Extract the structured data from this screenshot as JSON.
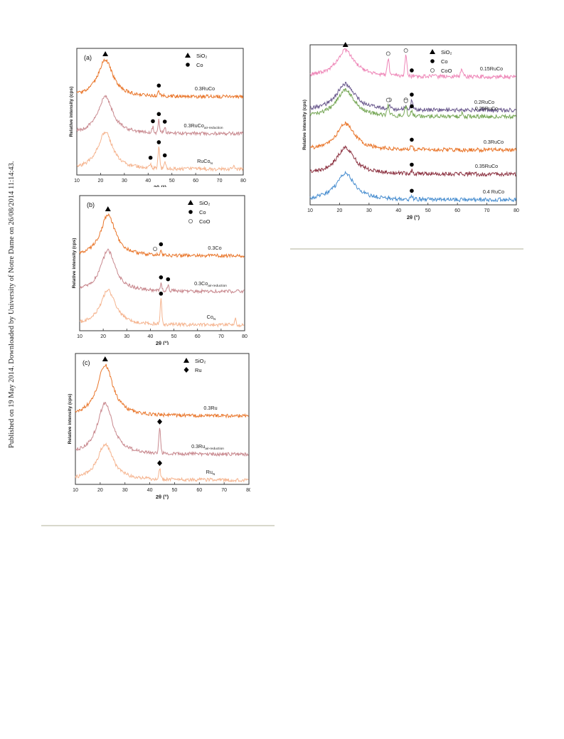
{
  "side_note": "Published on 19 May 2014. Downloaded by University of Notre Dame on 26/08/2014 11:14:43.",
  "chart_data": [
    {
      "type": "line",
      "panel_label": "(a)",
      "ylabel": "Relative intensity (cps)",
      "xlabel": "2θ (°)",
      "xlim": [
        10,
        80
      ],
      "x_ticks": [
        10,
        20,
        30,
        40,
        50,
        60,
        70,
        80
      ],
      "legend": [
        {
          "symbol": "triangle",
          "label": "SiO₂"
        },
        {
          "symbol": "circle",
          "label": "Co"
        }
      ],
      "series": [
        {
          "name": "0.3RuCo",
          "label_main": "0.3RuCo",
          "label_sub": "",
          "color": "#e9762b",
          "humps": [
            {
              "x": 22,
              "h": 1.0,
              "w": 3.8
            }
          ],
          "peaks": [
            {
              "x": 44.5,
              "h": 0.12
            }
          ],
          "markers": [
            {
              "type": "triangle",
              "x": 22
            },
            {
              "type": "circle",
              "x": 44.5
            }
          ]
        },
        {
          "name": "0.3RuCo air-reduction",
          "label_main": "0.3RuCo",
          "label_sub": "air-reduction",
          "color": "#c8888e",
          "humps": [
            {
              "x": 22,
              "h": 1.0,
              "w": 3.8
            }
          ],
          "peaks": [
            {
              "x": 42,
              "h": 0.15
            },
            {
              "x": 44.5,
              "h": 0.35
            },
            {
              "x": 47,
              "h": 0.15
            }
          ],
          "markers": [
            {
              "type": "circle",
              "x": 42
            },
            {
              "type": "circle",
              "x": 44.5
            },
            {
              "type": "circle",
              "x": 47
            }
          ]
        },
        {
          "name": "RuCo N",
          "label_main": "RuCo",
          "label_sub": "N",
          "color": "#f5b48f",
          "humps": [
            {
              "x": 22,
              "h": 1.0,
              "w": 3.8
            }
          ],
          "peaks": [
            {
              "x": 41,
              "h": 0.12
            },
            {
              "x": 44.5,
              "h": 0.55
            },
            {
              "x": 47,
              "h": 0.2
            },
            {
              "x": 76,
              "h": 0.1
            }
          ],
          "markers": [
            {
              "type": "circle",
              "x": 41
            },
            {
              "type": "circle",
              "x": 44.5
            },
            {
              "type": "circle",
              "x": 47
            }
          ]
        }
      ]
    },
    {
      "type": "line",
      "panel_label": "(b)",
      "ylabel": "Relative intensity (cps)",
      "xlabel": "2θ (°)",
      "xlim": [
        10,
        80
      ],
      "x_ticks": [
        10,
        20,
        30,
        40,
        50,
        60,
        70,
        80
      ],
      "legend": [
        {
          "symbol": "triangle",
          "label": "SiO₂"
        },
        {
          "symbol": "circle",
          "label": "Co"
        },
        {
          "symbol": "open-circle",
          "label": "CoO"
        }
      ],
      "series": [
        {
          "name": "0.3Co",
          "label_main": "0.3Co",
          "label_sub": "",
          "color": "#e9762b",
          "humps": [
            {
              "x": 22,
              "h": 1.0,
              "w": 3.8
            }
          ],
          "peaks": [
            {
              "x": 44.5,
              "h": 0.12
            }
          ],
          "markers": [
            {
              "type": "triangle",
              "x": 22
            },
            {
              "type": "open-circle",
              "x": 42
            },
            {
              "type": "circle",
              "x": 44.5
            }
          ]
        },
        {
          "name": "0.3Co air-reduction",
          "label_main": "0.3Co",
          "label_sub": "air-reduction",
          "color": "#c8888e",
          "humps": [
            {
              "x": 22,
              "h": 1.0,
              "w": 3.8
            }
          ],
          "peaks": [
            {
              "x": 44.5,
              "h": 0.18
            },
            {
              "x": 47.5,
              "h": 0.14
            }
          ],
          "markers": [
            {
              "type": "circle",
              "x": 44.5
            },
            {
              "type": "circle",
              "x": 47.5
            }
          ]
        },
        {
          "name": "Co N",
          "label_main": "Co",
          "label_sub": "N",
          "color": "#f5b48f",
          "humps": [
            {
              "x": 22,
              "h": 0.85,
              "w": 3.8
            }
          ],
          "peaks": [
            {
              "x": 44.5,
              "h": 0.6
            },
            {
              "x": 76,
              "h": 0.15
            }
          ],
          "markers": [
            {
              "type": "circle",
              "x": 44.5
            }
          ]
        }
      ]
    },
    {
      "type": "line",
      "panel_label": "(c)",
      "ylabel": "Relative intensity (cps)",
      "xlabel": "2θ (°)",
      "xlim": [
        10,
        80
      ],
      "x_ticks": [
        10,
        20,
        30,
        40,
        50,
        60,
        70,
        80
      ],
      "legend": [
        {
          "symbol": "triangle",
          "label": "SiO₂"
        },
        {
          "symbol": "diamond",
          "label": "Ru"
        }
      ],
      "series": [
        {
          "name": "0.3Ru",
          "label_main": "0.3Ru",
          "label_sub": "",
          "color": "#e9762b",
          "humps": [
            {
              "x": 22,
              "h": 1.0,
              "w": 3.8
            }
          ],
          "peaks": [],
          "markers": [
            {
              "type": "triangle",
              "x": 22
            }
          ]
        },
        {
          "name": "0.3Ru air-reduction",
          "label_main": "0.3Ru",
          "label_sub": "air-reduction",
          "color": "#c8888e",
          "humps": [
            {
              "x": 22,
              "h": 1.0,
              "w": 3.8
            }
          ],
          "peaks": [
            {
              "x": 44,
              "h": 0.5
            }
          ],
          "markers": [
            {
              "type": "diamond",
              "x": 44
            }
          ]
        },
        {
          "name": "Ru N",
          "label_main": "Ru",
          "label_sub": "N",
          "color": "#f5b48f",
          "humps": [
            {
              "x": 22,
              "h": 0.7,
              "w": 3.8
            }
          ],
          "peaks": [
            {
              "x": 44,
              "h": 0.2
            }
          ],
          "markers": [
            {
              "type": "diamond",
              "x": 44
            }
          ]
        }
      ]
    },
    {
      "type": "line",
      "panel_label": "",
      "ylabel": "Relative intensity (cps)",
      "xlabel": "2θ (°)",
      "xlim": [
        10,
        80
      ],
      "x_ticks": [
        10,
        20,
        30,
        40,
        50,
        60,
        70,
        80
      ],
      "legend": [
        {
          "symbol": "triangle",
          "label": "SiO₂"
        },
        {
          "symbol": "circle",
          "label": "Co"
        },
        {
          "symbol": "open-circle",
          "label": "CoO"
        }
      ],
      "series": [
        {
          "name": "0.15RuCo",
          "label_main": "0.15RuCo",
          "label_sub": "",
          "color": "#ee87b8",
          "humps": [
            {
              "x": 22,
              "h": 1.0,
              "w": 3.8
            }
          ],
          "peaks": [
            {
              "x": 36.5,
              "h": 0.6
            },
            {
              "x": 42.5,
              "h": 0.75
            },
            {
              "x": 61.5,
              "h": 0.3
            }
          ],
          "markers": [
            {
              "type": "triangle",
              "x": 22
            },
            {
              "type": "open-circle",
              "x": 36.5
            },
            {
              "type": "open-circle",
              "x": 42.5
            },
            {
              "type": "circle",
              "x": 44.5
            }
          ]
        },
        {
          "name": "0.2RuCo",
          "label_main": "0.2RuCo",
          "label_sub": "",
          "color": "#6b5a8e",
          "humps": [
            {
              "x": 22,
              "h": 1.0,
              "w": 3.8
            }
          ],
          "peaks": [
            {
              "x": 37,
              "h": 0.12
            },
            {
              "x": 42.5,
              "h": 0.15
            },
            {
              "x": 44.5,
              "h": 0.35
            }
          ],
          "markers": [
            {
              "type": "open-circle",
              "x": 37
            },
            {
              "type": "open-circle",
              "x": 42.5
            },
            {
              "type": "circle",
              "x": 44.5
            }
          ]
        },
        {
          "name": "0.25RuCo",
          "label_main": "0.25RuCo",
          "label_sub": "",
          "color": "#78a858",
          "humps": [
            {
              "x": 22,
              "h": 1.0,
              "w": 3.8
            }
          ],
          "peaks": [
            {
              "x": 36.5,
              "h": 0.35
            },
            {
              "x": 42.5,
              "h": 0.35
            },
            {
              "x": 44.5,
              "h": 0.15
            },
            {
              "x": 61.5,
              "h": 0.12
            }
          ],
          "markers": [
            {
              "type": "open-circle",
              "x": 36.5
            },
            {
              "type": "open-circle",
              "x": 42.5
            },
            {
              "type": "circle",
              "x": 44.5
            }
          ]
        },
        {
          "name": "0.3RuCo",
          "label_main": "0.3RuCo",
          "label_sub": "",
          "color": "#e9762b",
          "humps": [
            {
              "x": 22,
              "h": 1.0,
              "w": 3.8
            }
          ],
          "peaks": [
            {
              "x": 44.5,
              "h": 0.15
            }
          ],
          "markers": [
            {
              "type": "circle",
              "x": 44.5
            }
          ]
        },
        {
          "name": "0.35RuCo",
          "label_main": "0.35RuCo",
          "label_sub": "",
          "color": "#8c3241",
          "humps": [
            {
              "x": 22,
              "h": 1.0,
              "w": 3.8
            }
          ],
          "peaks": [
            {
              "x": 44.5,
              "h": 0.12
            }
          ],
          "markers": [
            {
              "type": "circle",
              "x": 44.5
            }
          ]
        },
        {
          "name": "0.4 RuCo",
          "label_main": "0.4 RuCo",
          "label_sub": "",
          "color": "#4a8fd0",
          "humps": [
            {
              "x": 22,
              "h": 1.0,
              "w": 3.8
            }
          ],
          "peaks": [
            {
              "x": 44.5,
              "h": 0.1
            }
          ],
          "markers": [
            {
              "type": "circle",
              "x": 44.5
            }
          ]
        }
      ]
    }
  ]
}
